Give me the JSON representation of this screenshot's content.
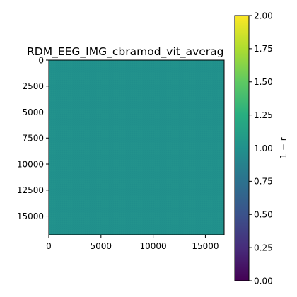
{
  "chart_data": {
    "type": "heatmap",
    "title": "RDM_EEG_IMG_cbramod_vit_averag",
    "xlabel": "",
    "ylabel": "",
    "x_ticks": [
      "0",
      "5000",
      "10000",
      "15000"
    ],
    "y_ticks": [
      "0",
      "2500",
      "5000",
      "7500",
      "10000",
      "12500",
      "15000"
    ],
    "x_tick_values": [
      0,
      5000,
      10000,
      15000
    ],
    "y_tick_values": [
      0,
      2500,
      5000,
      7500,
      10000,
      12500,
      15000
    ],
    "xlim": [
      0,
      16800
    ],
    "ylim": [
      16800,
      0
    ],
    "matrix_fill_value": 1.0,
    "colormap": "viridis",
    "colorbar": {
      "label": "1 − r",
      "range": [
        0,
        2
      ],
      "ticks": [
        "0.00",
        "0.25",
        "0.50",
        "0.75",
        "1.00",
        "1.25",
        "1.50",
        "1.75",
        "2.00"
      ],
      "tick_values": [
        0,
        0.25,
        0.5,
        0.75,
        1.0,
        1.25,
        1.5,
        1.75,
        2.0
      ]
    },
    "grid": false
  }
}
